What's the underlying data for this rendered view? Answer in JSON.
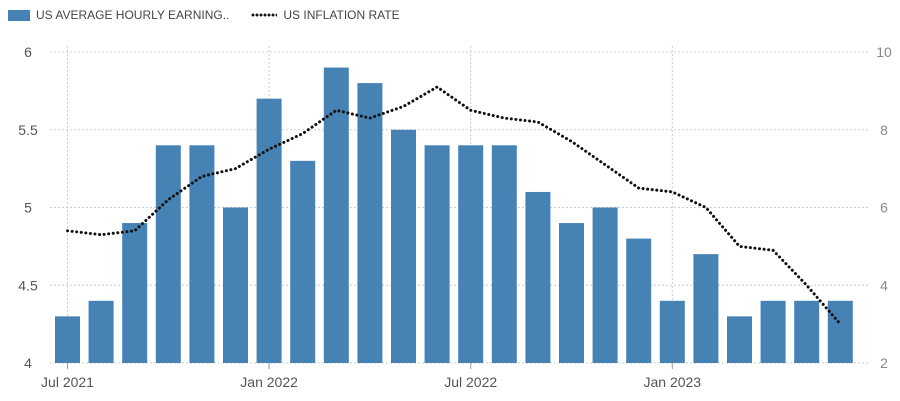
{
  "chart_data": {
    "type": "bar",
    "title": "",
    "colors": {
      "bar": "#4682b4",
      "line": "#111111",
      "grid": "#cccccc"
    },
    "legend": {
      "placement": "top-left",
      "bar_label": "US AVERAGE HOURLY EARNING..",
      "line_label": "US INFLATION RATE"
    },
    "x_ticks": [
      "Jul 2021",
      "Jan 2022",
      "Jul 2022",
      "Jan 2023"
    ],
    "x_tick_months": [
      "2021-07",
      "2022-01",
      "2022-07",
      "2023-01"
    ],
    "months": [
      "2021-07",
      "2021-08",
      "2021-09",
      "2021-10",
      "2021-11",
      "2021-12",
      "2022-01",
      "2022-02",
      "2022-03",
      "2022-04",
      "2022-05",
      "2022-06",
      "2022-07",
      "2022-08",
      "2022-09",
      "2022-10",
      "2022-11",
      "2022-12",
      "2023-01",
      "2023-02",
      "2023-03",
      "2023-04",
      "2023-05",
      "2023-06"
    ],
    "y_left": {
      "min": 4,
      "max": 6,
      "ticks": [
        "4",
        "4.5",
        "5",
        "5.5",
        "6"
      ]
    },
    "y_right": {
      "min": 2,
      "max": 10,
      "ticks": [
        "2",
        "4",
        "6",
        "8",
        "10"
      ]
    },
    "grid": true,
    "series": [
      {
        "name": "US AVERAGE HOURLY EARNING..",
        "type": "bar",
        "axis": "left",
        "values": [
          4.3,
          4.4,
          4.9,
          5.4,
          5.4,
          5.0,
          5.7,
          5.3,
          5.9,
          5.8,
          5.5,
          5.4,
          5.4,
          5.4,
          5.1,
          4.9,
          5.0,
          4.8,
          4.4,
          4.7,
          4.3,
          4.4,
          4.4,
          4.4
        ]
      },
      {
        "name": "US INFLATION RATE",
        "type": "line",
        "style": "dotted",
        "axis": "right",
        "values": [
          5.4,
          5.3,
          5.4,
          6.2,
          6.8,
          7.0,
          7.5,
          7.9,
          8.5,
          8.3,
          8.6,
          9.1,
          8.5,
          8.3,
          8.2,
          7.7,
          7.1,
          6.5,
          6.4,
          6.0,
          5.0,
          4.9,
          4.0,
          3.0
        ]
      }
    ]
  }
}
